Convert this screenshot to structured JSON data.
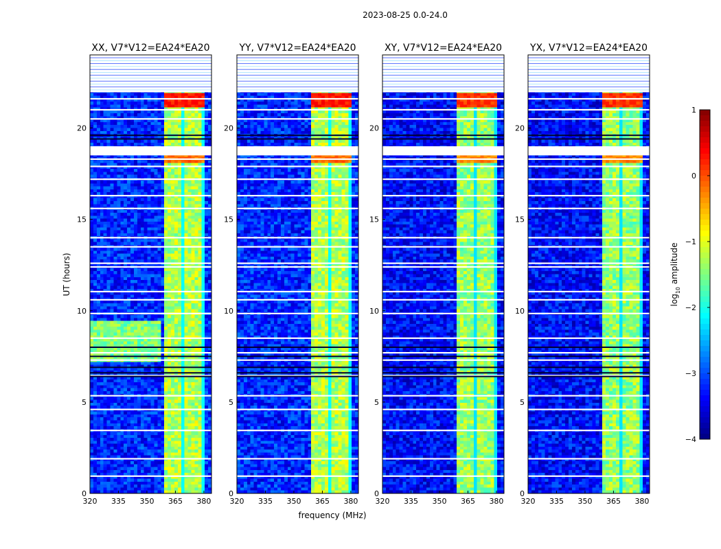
{
  "chart_data": {
    "type": "heatmap",
    "title": "2023-08-25 0.0-24.0",
    "xlabel": "frequency (MHz)",
    "ylabel": "UT (hours)",
    "xlim": [
      320,
      384
    ],
    "ylim": [
      0,
      24
    ],
    "xticks": [
      320,
      335,
      350,
      365,
      380
    ],
    "yticks": [
      0,
      5,
      10,
      15,
      20
    ],
    "panels": [
      {
        "title": "XX, V7*V12=EA24*EA20"
      },
      {
        "title": "YY, V7*V12=EA24*EA20"
      },
      {
        "title": "XY, V7*V12=EA24*EA20"
      },
      {
        "title": "YX, V7*V12=EA24*EA20"
      }
    ],
    "colorbar": {
      "label": "log10 amplitude",
      "label_prefix": "log",
      "label_sub": "10",
      "label_suffix": " amplitude",
      "range": [
        -4,
        1
      ],
      "ticks": [
        1,
        0,
        -1,
        -2,
        -3,
        -4
      ],
      "colormap": "jet"
    },
    "features": {
      "strong_band_mhz": [
        360,
        380
      ],
      "flagged_ut_hours": [
        0.95,
        1.9,
        3.45,
        4.6,
        5.35,
        6.45,
        7.3,
        7.7,
        8.5,
        9.85,
        10.6,
        11.05,
        12.4,
        12.6,
        13.5,
        14.0,
        15.6,
        16.3,
        17.2,
        17.9,
        18.3,
        18.9,
        20.5,
        21.0,
        21.6,
        22.0,
        23.2,
        23.6
      ],
      "flagged_block_ut_hours": [
        [
          22.0,
          24.0
        ],
        [
          18.5,
          19.0
        ]
      ],
      "dark_ut_hours": [
        6.4,
        6.6,
        6.9,
        7.5,
        8.0,
        19.4,
        19.6
      ]
    }
  }
}
